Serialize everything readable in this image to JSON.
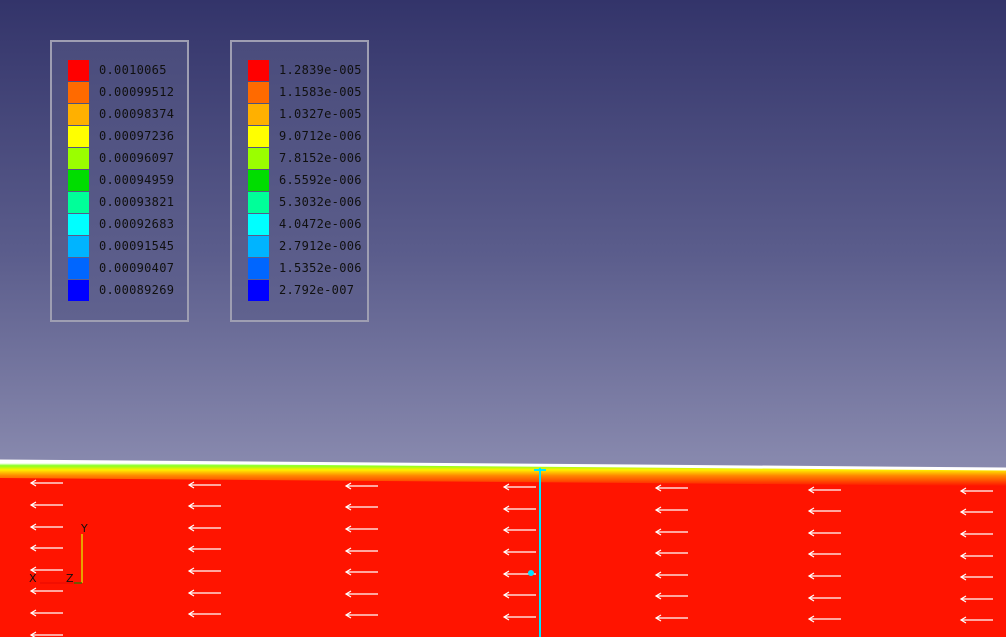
{
  "legends": [
    {
      "name": "legend-left",
      "entries": [
        {
          "color": "#ff0000",
          "label": "0.0010065"
        },
        {
          "color": "#ff6a00",
          "label": "0.00099512"
        },
        {
          "color": "#ffb000",
          "label": "0.00098374"
        },
        {
          "color": "#ffff00",
          "label": "0.00097236"
        },
        {
          "color": "#9aff00",
          "label": "0.00096097"
        },
        {
          "color": "#00dd00",
          "label": "0.00094959"
        },
        {
          "color": "#00ff99",
          "label": "0.00093821"
        },
        {
          "color": "#00ffff",
          "label": "0.00092683"
        },
        {
          "color": "#00b4ff",
          "label": "0.00091545"
        },
        {
          "color": "#0066ff",
          "label": "0.00090407"
        },
        {
          "color": "#0000ff",
          "label": "0.00089269"
        }
      ]
    },
    {
      "name": "legend-right",
      "entries": [
        {
          "color": "#ff0000",
          "label": "1.2839e-005"
        },
        {
          "color": "#ff6a00",
          "label": "1.1583e-005"
        },
        {
          "color": "#ffb000",
          "label": "1.0327e-005"
        },
        {
          "color": "#ffff00",
          "label": "9.0712e-006"
        },
        {
          "color": "#9aff00",
          "label": "7.8152e-006"
        },
        {
          "color": "#00dd00",
          "label": "6.5592e-006"
        },
        {
          "color": "#00ff99",
          "label": "5.3032e-006"
        },
        {
          "color": "#00ffff",
          "label": "4.0472e-006"
        },
        {
          "color": "#00b4ff",
          "label": "2.7912e-006"
        },
        {
          "color": "#0066ff",
          "label": "1.5352e-006"
        },
        {
          "color": "#0000ff",
          "label": "2.792e-007"
        }
      ]
    }
  ],
  "axes": {
    "x": "X",
    "y": "Y",
    "z": "Z"
  },
  "colors": {
    "field": "#ff1400",
    "probe_line": "#00e5ff",
    "vectors": "#ffffff"
  }
}
